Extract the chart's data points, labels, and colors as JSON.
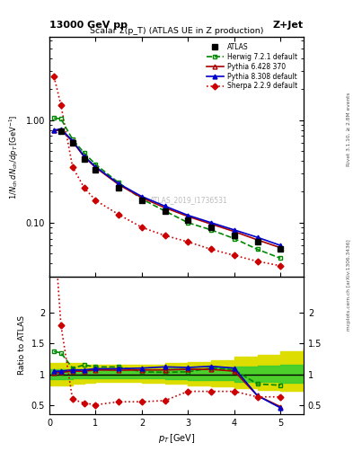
{
  "title_top": "13000 GeV pp",
  "title_right": "Z+Jet",
  "plot_title": "Scalar Σ(p_T) (ATLAS UE in Z production)",
  "watermark": "ATLAS_2019_I1736531",
  "ylabel_main": "1/N_{ch} dN_{ch}/dp_T [GeV]",
  "ylabel_ratio": "Ratio to ATLAS",
  "xlabel": "p_T [GeV]",
  "right_label": "mcplots.cern.ch [arXiv:1306.3436]",
  "rivet_label": "Rivet 3.1.10, ≥ 2.8M events",
  "atlas_x": [
    0.25,
    0.5,
    0.75,
    1.0,
    1.5,
    2.0,
    2.5,
    3.0,
    3.5,
    4.0,
    4.5,
    5.0
  ],
  "atlas_y": [
    0.78,
    0.6,
    0.42,
    0.33,
    0.22,
    0.165,
    0.13,
    0.105,
    0.09,
    0.075,
    0.065,
    0.055
  ],
  "atlas_yerr": [
    0.03,
    0.02,
    0.015,
    0.01,
    0.008,
    0.005,
    0.004,
    0.003,
    0.003,
    0.002,
    0.002,
    0.002
  ],
  "herwig_x": [
    0.1,
    0.25,
    0.5,
    0.75,
    1.0,
    1.5,
    2.0,
    2.5,
    3.0,
    3.5,
    4.0,
    4.5,
    5.0
  ],
  "herwig_y": [
    1.05,
    1.03,
    0.65,
    0.48,
    0.37,
    0.245,
    0.17,
    0.13,
    0.1,
    0.085,
    0.07,
    0.055,
    0.045
  ],
  "herwig_ratio": [
    1.37,
    1.35,
    1.1,
    1.15,
    1.12,
    1.12,
    1.04,
    1.03,
    1.04,
    1.1,
    1.07,
    0.84,
    0.82
  ],
  "pythia6_x": [
    0.1,
    0.25,
    0.5,
    0.75,
    1.0,
    1.5,
    2.0,
    2.5,
    3.0,
    3.5,
    4.0,
    4.5,
    5.0
  ],
  "pythia6_y": [
    0.79,
    0.8,
    0.62,
    0.44,
    0.345,
    0.235,
    0.175,
    0.14,
    0.115,
    0.097,
    0.082,
    0.068,
    0.057
  ],
  "pythia6_ratio": [
    1.02,
    1.03,
    1.05,
    1.05,
    1.07,
    1.065,
    1.07,
    1.07,
    1.08,
    1.08,
    1.05,
    0.65,
    0.47
  ],
  "pythia8_x": [
    0.1,
    0.25,
    0.5,
    0.75,
    1.0,
    1.5,
    2.0,
    2.5,
    3.0,
    3.5,
    4.0,
    4.5,
    5.0
  ],
  "pythia8_y": [
    0.8,
    0.82,
    0.63,
    0.445,
    0.35,
    0.24,
    0.18,
    0.145,
    0.118,
    0.1,
    0.085,
    0.072,
    0.06
  ],
  "pythia8_ratio": [
    1.05,
    1.05,
    1.07,
    1.07,
    1.09,
    1.09,
    1.1,
    1.12,
    1.11,
    1.13,
    1.1,
    0.65,
    0.45
  ],
  "sherpa_x": [
    0.1,
    0.25,
    0.5,
    0.75,
    1.0,
    1.5,
    2.0,
    2.5,
    3.0,
    3.5,
    4.0,
    4.5,
    5.0
  ],
  "sherpa_y": [
    2.65,
    1.4,
    0.35,
    0.22,
    0.165,
    0.12,
    0.09,
    0.075,
    0.065,
    0.055,
    0.048,
    0.042,
    0.038
  ],
  "sherpa_ratio": [
    3.4,
    1.8,
    0.59,
    0.53,
    0.5,
    0.55,
    0.55,
    0.57,
    0.72,
    0.72,
    0.72,
    0.63,
    0.63
  ],
  "band_x": [
    0.0,
    0.25,
    0.5,
    0.75,
    1.0,
    1.5,
    2.0,
    2.5,
    3.0,
    3.5,
    4.0,
    4.5,
    5.0,
    5.5
  ],
  "band_inner_low": [
    0.92,
    0.92,
    0.93,
    0.94,
    0.94,
    0.94,
    0.93,
    0.92,
    0.91,
    0.9,
    0.88,
    0.87,
    0.86,
    0.86
  ],
  "band_inner_high": [
    1.08,
    1.08,
    1.08,
    1.07,
    1.07,
    1.07,
    1.08,
    1.09,
    1.1,
    1.11,
    1.13,
    1.14,
    1.15,
    1.15
  ],
  "band_outer_low": [
    0.82,
    0.82,
    0.84,
    0.86,
    0.87,
    0.87,
    0.86,
    0.84,
    0.82,
    0.8,
    0.77,
    0.75,
    0.73,
    0.73
  ],
  "band_outer_high": [
    1.18,
    1.18,
    1.18,
    1.16,
    1.15,
    1.15,
    1.16,
    1.18,
    1.2,
    1.23,
    1.28,
    1.32,
    1.38,
    1.42
  ],
  "color_atlas": "#000000",
  "color_herwig": "#008800",
  "color_pythia6": "#aa0000",
  "color_pythia8": "#0000cc",
  "color_sherpa": "#cc0000",
  "color_band_inner": "#33cc33",
  "color_band_outer": "#dddd00",
  "xlim": [
    0,
    5.5
  ],
  "ylim_main": [
    0.03,
    6.5
  ],
  "ylim_ratio": [
    0.35,
    2.6
  ]
}
